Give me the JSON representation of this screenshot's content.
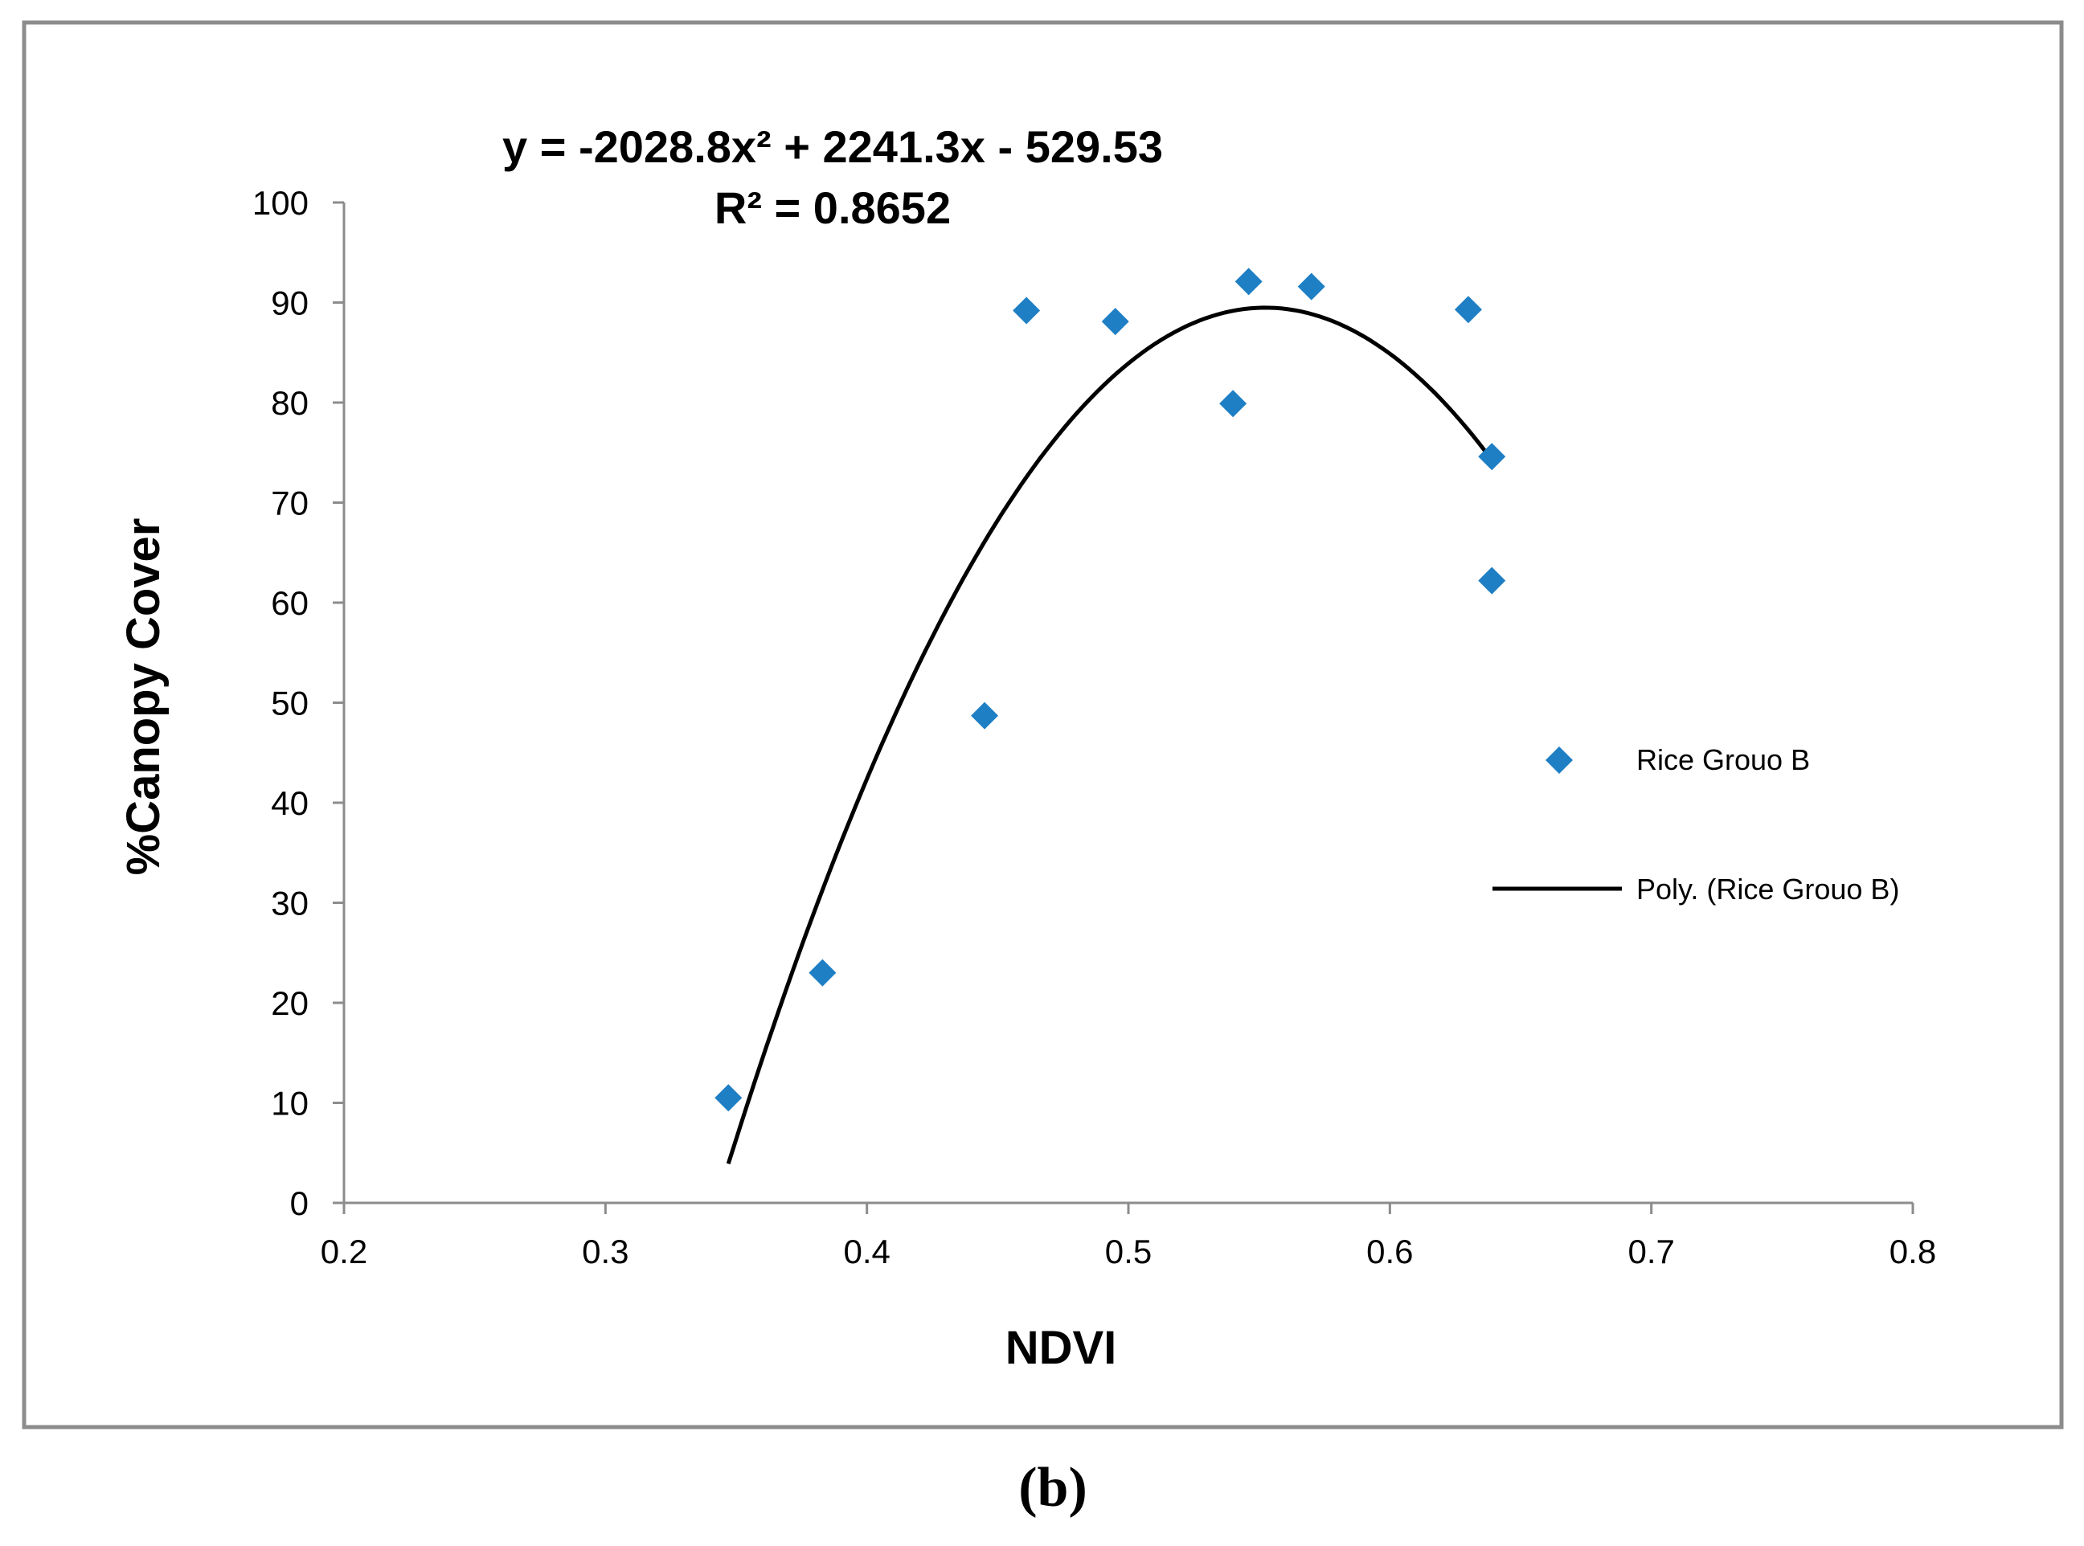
{
  "panel_label": "(b)",
  "chart_data": {
    "type": "scatter",
    "xlabel": "NDVI",
    "ylabel": "%Canopy Cover",
    "xlim": [
      0.2,
      0.8
    ],
    "ylim": [
      0,
      100
    ],
    "x_ticks": [
      0.2,
      0.3,
      0.4,
      0.5,
      0.6,
      0.7,
      0.8
    ],
    "x_tick_labels": [
      "0.2",
      "0.3",
      "0.4",
      "0.5",
      "0.6",
      "0.7",
      "0.8"
    ],
    "y_ticks": [
      0,
      10,
      20,
      30,
      40,
      50,
      60,
      70,
      80,
      90,
      100
    ],
    "y_tick_labels": [
      "0",
      "10",
      "20",
      "30",
      "40",
      "50",
      "60",
      "70",
      "80",
      "90",
      "100"
    ],
    "grid": false,
    "legend_position": "right",
    "series": [
      {
        "name": "Rice Grouo B",
        "kind": "scatter",
        "marker": "diamond",
        "color": "#1f7fc4",
        "x": [
          0.347,
          0.383,
          0.445,
          0.461,
          0.495,
          0.54,
          0.546,
          0.57,
          0.63,
          0.639,
          0.639
        ],
        "y": [
          10.5,
          23.0,
          48.7,
          89.2,
          88.1,
          79.9,
          92.1,
          91.6,
          89.3,
          74.6,
          62.2
        ]
      },
      {
        "name": "Poly. (Rice Grouo B)",
        "kind": "trendline",
        "color": "#000000",
        "coefficients": [
          -2028.8,
          2241.3,
          -529.53
        ],
        "x_range": [
          0.347,
          0.639
        ]
      }
    ],
    "annotations": {
      "equation": "y = -2028.8x² + 2241.3x - 529.53",
      "r_squared": "R² = 0.8652"
    }
  }
}
